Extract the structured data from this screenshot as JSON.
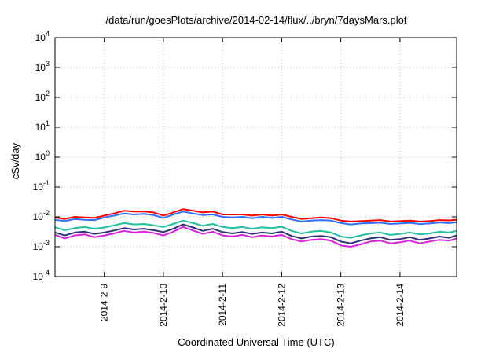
{
  "chart_data": {
    "type": "line",
    "title": "/data/run/goesPlots/archive/2014-02-14/flux/../bryn/7daysMars.plot",
    "xlabel": "Coordinated Universal Time (UTC)",
    "ylabel": "cSv/day",
    "yscale": "log",
    "ylim": [
      0.0001,
      10000
    ],
    "xlim": [
      "2014-02-08T04:00",
      "2014-02-14T23:00"
    ],
    "grid": true,
    "legend": "none",
    "y_ticks": [
      {
        "mant": "10",
        "exp": "-4",
        "value": 0.0001
      },
      {
        "mant": "10",
        "exp": "-3",
        "value": 0.001
      },
      {
        "mant": "10",
        "exp": "-2",
        "value": 0.01
      },
      {
        "mant": "10",
        "exp": "-1",
        "value": 0.1
      },
      {
        "mant": "10",
        "exp": "0",
        "value": 1
      },
      {
        "mant": "10",
        "exp": "1",
        "value": 10
      },
      {
        "mant": "10",
        "exp": "2",
        "value": 100
      },
      {
        "mant": "10",
        "exp": "3",
        "value": 1000
      },
      {
        "mant": "10",
        "exp": "4",
        "value": 10000
      }
    ],
    "x_ticks": [
      {
        "label": "2014-2-9",
        "value": "2014-02-09"
      },
      {
        "label": "2014-2-10",
        "value": "2014-02-10"
      },
      {
        "label": "2014-2-11",
        "value": "2014-02-11"
      },
      {
        "label": "2014-2-12",
        "value": "2014-02-12"
      },
      {
        "label": "2014-2-13",
        "value": "2014-02-13"
      },
      {
        "label": "2014-2-14",
        "value": "2014-02-14"
      }
    ],
    "x": [
      "2014-02-08T04:00",
      "2014-02-08T08:00",
      "2014-02-08T12:00",
      "2014-02-08T16:00",
      "2014-02-08T20:00",
      "2014-02-09T00:00",
      "2014-02-09T04:00",
      "2014-02-09T08:00",
      "2014-02-09T12:00",
      "2014-02-09T16:00",
      "2014-02-09T20:00",
      "2014-02-10T00:00",
      "2014-02-10T04:00",
      "2014-02-10T08:00",
      "2014-02-10T12:00",
      "2014-02-10T16:00",
      "2014-02-10T20:00",
      "2014-02-11T00:00",
      "2014-02-11T04:00",
      "2014-02-11T08:00",
      "2014-02-11T12:00",
      "2014-02-11T16:00",
      "2014-02-11T20:00",
      "2014-02-12T00:00",
      "2014-02-12T04:00",
      "2014-02-12T08:00",
      "2014-02-12T12:00",
      "2014-02-12T16:00",
      "2014-02-12T20:00",
      "2014-02-13T00:00",
      "2014-02-13T04:00",
      "2014-02-13T08:00",
      "2014-02-13T12:00",
      "2014-02-13T16:00",
      "2014-02-13T20:00",
      "2014-02-14T00:00",
      "2014-02-14T04:00",
      "2014-02-14T08:00",
      "2014-02-14T12:00",
      "2014-02-14T16:00",
      "2014-02-14T20:00",
      "2014-02-14T23:00"
    ],
    "series": [
      {
        "color": "#ff0000",
        "values": [
          0.0095,
          0.0085,
          0.01,
          0.0095,
          0.0092,
          0.011,
          0.013,
          0.016,
          0.015,
          0.015,
          0.014,
          0.011,
          0.014,
          0.018,
          0.016,
          0.014,
          0.015,
          0.012,
          0.012,
          0.012,
          0.011,
          0.012,
          0.011,
          0.012,
          0.01,
          0.0085,
          0.009,
          0.0095,
          0.009,
          0.0075,
          0.007,
          0.0072,
          0.0075,
          0.0078,
          0.007,
          0.0072,
          0.0075,
          0.007,
          0.0072,
          0.0078,
          0.0076,
          0.008
        ]
      },
      {
        "color": "#2f6fff",
        "values": [
          0.008,
          0.0072,
          0.0085,
          0.008,
          0.0078,
          0.0095,
          0.011,
          0.013,
          0.012,
          0.0125,
          0.0115,
          0.0092,
          0.012,
          0.015,
          0.013,
          0.0115,
          0.012,
          0.01,
          0.0095,
          0.01,
          0.009,
          0.01,
          0.0092,
          0.01,
          0.0082,
          0.007,
          0.0075,
          0.0078,
          0.0075,
          0.0062,
          0.0056,
          0.006,
          0.0062,
          0.0064,
          0.0058,
          0.006,
          0.0063,
          0.0058,
          0.006,
          0.0065,
          0.0062,
          0.0066
        ]
      },
      {
        "color": "#20c0a0",
        "values": [
          0.0045,
          0.0036,
          0.0042,
          0.0046,
          0.004,
          0.0044,
          0.0052,
          0.0062,
          0.0056,
          0.0058,
          0.0052,
          0.0046,
          0.0058,
          0.0075,
          0.0062,
          0.005,
          0.0058,
          0.0046,
          0.0042,
          0.0046,
          0.004,
          0.0045,
          0.0042,
          0.0047,
          0.0034,
          0.0028,
          0.0032,
          0.0034,
          0.003,
          0.0022,
          0.002,
          0.0024,
          0.0028,
          0.003,
          0.0025,
          0.0027,
          0.003,
          0.0026,
          0.0028,
          0.0032,
          0.003,
          0.0034
        ]
      },
      {
        "color": "#30307a",
        "values": [
          0.003,
          0.0024,
          0.003,
          0.0032,
          0.0027,
          0.003,
          0.0035,
          0.0042,
          0.0038,
          0.004,
          0.0036,
          0.0031,
          0.004,
          0.0056,
          0.0044,
          0.0034,
          0.004,
          0.0031,
          0.0028,
          0.0031,
          0.0027,
          0.003,
          0.0028,
          0.0032,
          0.0023,
          0.0019,
          0.0022,
          0.0023,
          0.0021,
          0.0015,
          0.0013,
          0.0016,
          0.0019,
          0.0021,
          0.0017,
          0.0018,
          0.0021,
          0.0017,
          0.0019,
          0.0022,
          0.002,
          0.0024
        ]
      },
      {
        "color": "#e020e0",
        "values": [
          0.0025,
          0.0019,
          0.0024,
          0.0026,
          0.0021,
          0.0024,
          0.0028,
          0.0034,
          0.003,
          0.0032,
          0.0029,
          0.0024,
          0.0032,
          0.0046,
          0.0035,
          0.0027,
          0.0032,
          0.0024,
          0.0022,
          0.0025,
          0.0021,
          0.0024,
          0.0022,
          0.0025,
          0.0018,
          0.0015,
          0.0017,
          0.0018,
          0.0016,
          0.0011,
          0.001,
          0.0012,
          0.0015,
          0.0016,
          0.0013,
          0.0014,
          0.0016,
          0.0013,
          0.0015,
          0.0017,
          0.0016,
          0.0019
        ]
      }
    ]
  }
}
